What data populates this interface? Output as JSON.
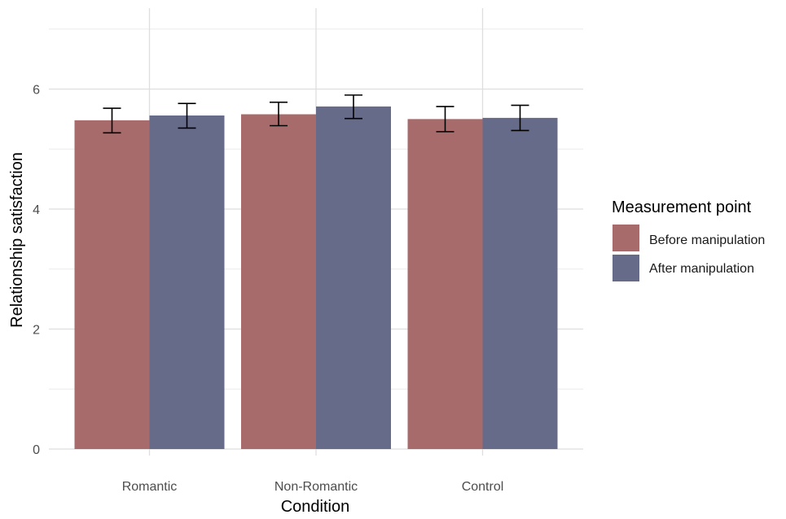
{
  "chart_data": {
    "type": "bar",
    "title": "",
    "xlabel": "Condition",
    "ylabel": "Relationship satisfaction",
    "categories": [
      "Romantic",
      "Non-Romantic",
      "Control"
    ],
    "series": [
      {
        "name": "Before manipulation",
        "color": "#a86b6b",
        "values": [
          5.48,
          5.58,
          5.5
        ],
        "error_low": [
          5.27,
          5.39,
          5.29
        ],
        "error_high": [
          5.68,
          5.78,
          5.71
        ]
      },
      {
        "name": "After manipulation",
        "color": "#676b8a",
        "values": [
          5.56,
          5.71,
          5.52
        ],
        "error_low": [
          5.35,
          5.51,
          5.31
        ],
        "error_high": [
          5.76,
          5.9,
          5.73
        ]
      }
    ],
    "ylim": [
      0,
      7.2
    ],
    "yticks": [
      0,
      2,
      4,
      6
    ],
    "grid": true,
    "legend": {
      "title": "Measurement point",
      "position": "right"
    }
  }
}
